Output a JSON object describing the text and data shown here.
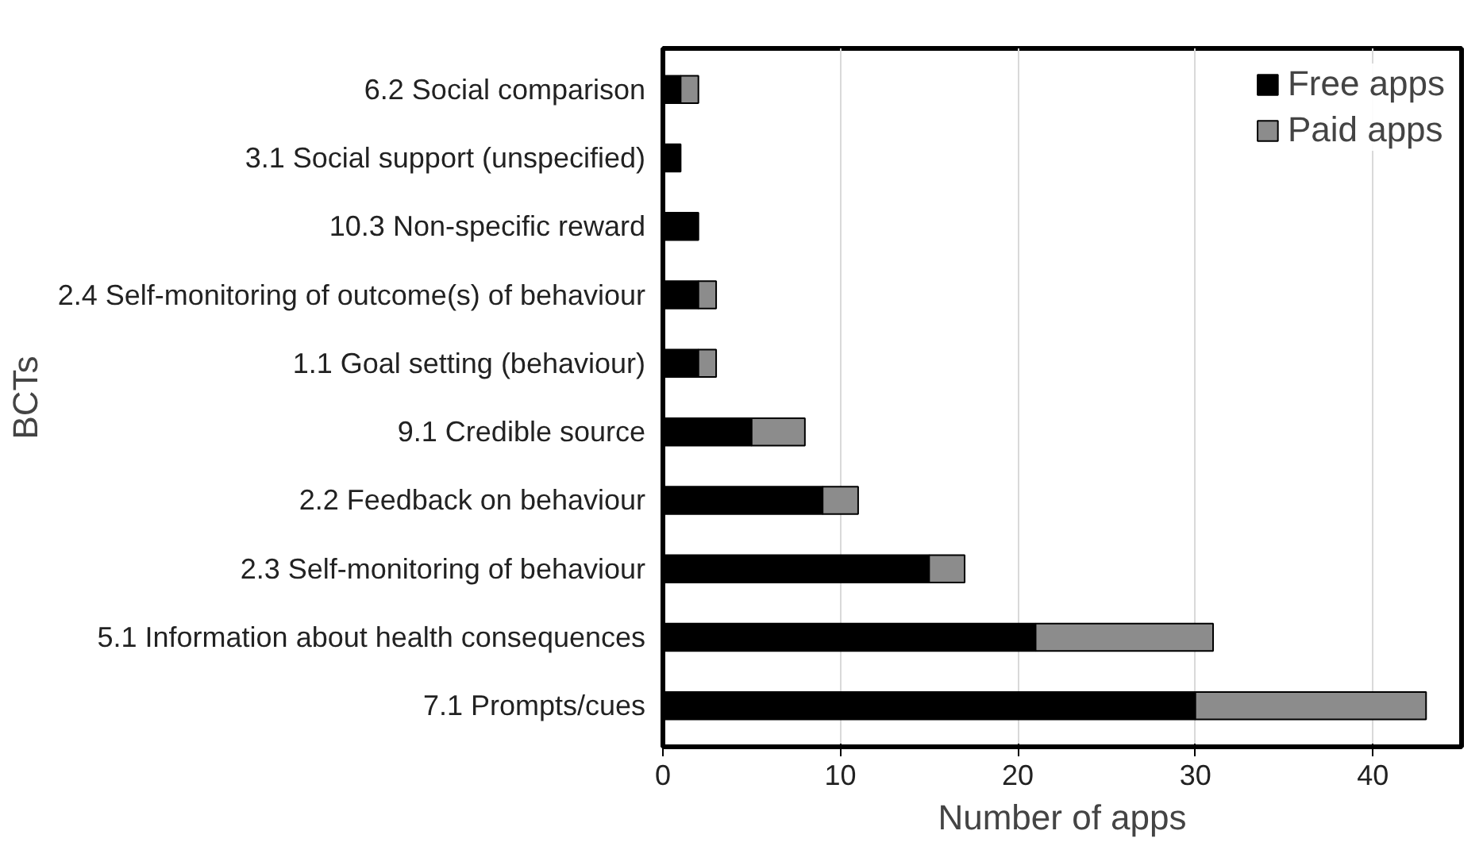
{
  "chart_data": {
    "type": "bar",
    "orientation": "horizontal",
    "stacked": true,
    "xlabel": "Number of apps",
    "ylabel": "BCTs",
    "categories": [
      "6.2 Social comparison",
      "3.1 Social support (unspecified)",
      "10.3 Non-specific reward",
      "2.4 Self-monitoring of outcome(s) of behaviour",
      "1.1 Goal setting (behaviour)",
      "9.1 Credible source",
      "2.2 Feedback on behaviour",
      "2.3 Self-monitoring of behaviour",
      "5.1 Information about health consequences",
      "7.1 Prompts/cues"
    ],
    "series": [
      {
        "name": "Free apps",
        "color": "#000000",
        "values": [
          1,
          1,
          2,
          2,
          2,
          5,
          9,
          15,
          21,
          30
        ]
      },
      {
        "name": "Paid apps",
        "color": "#8c8c8c",
        "values": [
          1,
          0,
          0,
          1,
          1,
          3,
          2,
          2,
          10,
          13
        ]
      }
    ],
    "xlim": [
      0,
      45
    ],
    "xticks": [
      0,
      10,
      20,
      30,
      40
    ],
    "grid": "x",
    "legend": "top right"
  }
}
